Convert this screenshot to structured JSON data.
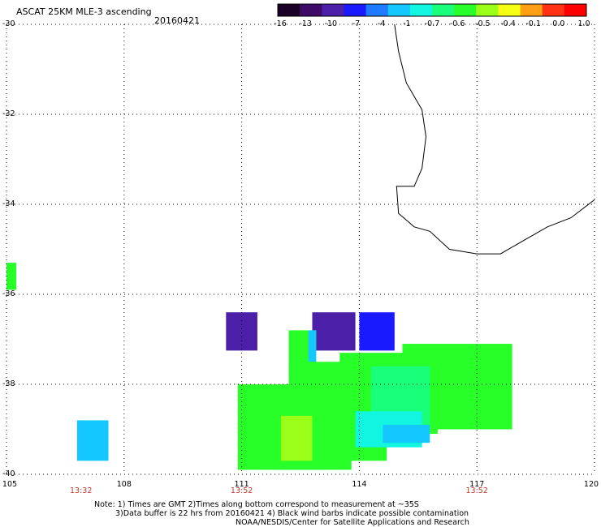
{
  "title": "ASCAT 25KM MLE-3 ascending",
  "date": "20160421",
  "colorbar": {
    "labels": [
      "-16",
      "-13",
      "-10",
      "-7",
      "-4",
      "-1",
      "-0.7",
      "-0.6",
      "-0.5",
      "-0.4",
      "-0.1",
      "0.0",
      "1.0"
    ],
    "colors": [
      "#1a0026",
      "#3d0a66",
      "#4b1fa8",
      "#1a1aff",
      "#1e7bff",
      "#14c8ff",
      "#12f5e0",
      "#1aff7a",
      "#28ff28",
      "#9cff1a",
      "#f5ff14",
      "#ffa014",
      "#ff3214",
      "#ff0000"
    ]
  },
  "axes": {
    "lat_labels": [
      "-30",
      "-32",
      "-34",
      "-36",
      "-38",
      "-40"
    ],
    "lon_labels": [
      "105",
      "108",
      "111",
      "114",
      "117",
      "120"
    ],
    "time_labels": [
      {
        "lon": 106.9,
        "text": "13:32"
      },
      {
        "lon": 111,
        "text": "13:52"
      },
      {
        "lon": 117,
        "text": "13:52"
      }
    ]
  },
  "notes": {
    "line1": "Note: 1) Times are GMT 2)Times along bottom correspond to measurement at ~35S",
    "line2": "3)Data buffer is 22 hrs from 20160421 4) Black wind barbs indicate possible contamination",
    "line3": "NOAA/NESDIS/Center for Satellite Applications and Research"
  },
  "map_data": {
    "lon_range": [
      105,
      120
    ],
    "lat_range": [
      -30,
      -40
    ],
    "cells": [
      {
        "lon": 105.0,
        "lat": -35.3,
        "w": 0.25,
        "h": 0.6,
        "color": "#28ff28"
      },
      {
        "lon": 106.8,
        "lat": -38.8,
        "w": 0.8,
        "h": 0.9,
        "color": "#14c8ff"
      },
      {
        "lon": 110.6,
        "lat": -36.4,
        "w": 0.8,
        "h": 0.85,
        "color": "#4b1fa8"
      },
      {
        "lon": 112.8,
        "lat": -36.4,
        "w": 1.1,
        "h": 0.85,
        "color": "#4b1fa8"
      },
      {
        "lon": 114.0,
        "lat": -36.4,
        "w": 0.9,
        "h": 0.85,
        "color": "#1a1aff"
      },
      {
        "lon": 112.2,
        "lat": -36.8,
        "w": 0.7,
        "h": 1.0,
        "color": "#28ff28"
      },
      {
        "lon": 112.7,
        "lat": -36.8,
        "w": 0.2,
        "h": 0.7,
        "color": "#14c8ff"
      },
      {
        "lon": 110.9,
        "lat": -38.0,
        "w": 2.4,
        "h": 1.9,
        "color": "#28ff28"
      },
      {
        "lon": 112.2,
        "lat": -37.5,
        "w": 2.5,
        "h": 2.2,
        "color": "#28ff28"
      },
      {
        "lon": 113.5,
        "lat": -37.3,
        "w": 2.5,
        "h": 1.8,
        "color": "#28ff28"
      },
      {
        "lon": 115.1,
        "lat": -37.1,
        "w": 2.8,
        "h": 1.9,
        "color": "#28ff28"
      },
      {
        "lon": 114.3,
        "lat": -37.6,
        "w": 1.5,
        "h": 1.3,
        "color": "#1aff7a"
      },
      {
        "lon": 113.9,
        "lat": -38.6,
        "w": 1.7,
        "h": 0.8,
        "color": "#12f5e0"
      },
      {
        "lon": 114.6,
        "lat": -38.9,
        "w": 1.2,
        "h": 0.4,
        "color": "#14c8ff"
      },
      {
        "lon": 111.6,
        "lat": -39.5,
        "w": 2.2,
        "h": 0.4,
        "color": "#28ff28"
      },
      {
        "lon": 112.0,
        "lat": -38.7,
        "w": 0.8,
        "h": 1.0,
        "color": "#9cff1a"
      }
    ],
    "coast": [
      [
        114.9,
        -30.0
      ],
      [
        115.0,
        -30.6
      ],
      [
        115.2,
        -31.3
      ],
      [
        115.6,
        -31.9
      ],
      [
        115.7,
        -32.5
      ],
      [
        115.6,
        -33.2
      ],
      [
        115.4,
        -33.6
      ],
      [
        114.95,
        -33.6
      ],
      [
        115.0,
        -34.2
      ],
      [
        115.4,
        -34.5
      ],
      [
        115.8,
        -34.6
      ],
      [
        116.3,
        -35.0
      ],
      [
        117.0,
        -35.1
      ],
      [
        117.6,
        -35.1
      ],
      [
        118.2,
        -34.8
      ],
      [
        118.8,
        -34.5
      ],
      [
        119.4,
        -34.3
      ],
      [
        120.0,
        -33.9
      ]
    ]
  }
}
